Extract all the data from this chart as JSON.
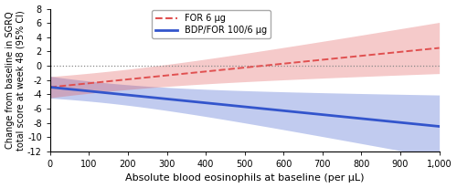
{
  "x_min": 0,
  "x_max": 1000,
  "y_min": -12,
  "y_max": 8,
  "x_ticks": [
    0,
    100,
    200,
    300,
    400,
    500,
    600,
    700,
    800,
    900,
    1000
  ],
  "x_tick_labels": [
    "0",
    "100",
    "200",
    "300",
    "400",
    "500",
    "600",
    "700",
    "800",
    "900",
    "1,000"
  ],
  "y_ticks": [
    -12,
    -10,
    -8,
    -6,
    -4,
    -2,
    0,
    2,
    4,
    6,
    8
  ],
  "xlabel": "Absolute blood eosinophils at baseline (per μL)",
  "ylabel": "Change from baseline in SGRQ\ntotal score at week 48 (95% CI)",
  "for_color": "#e05050",
  "bdp_color": "#3355cc",
  "for_label": "FOR 6 μg",
  "bdp_label": "BDP/FOR 100/6 μg",
  "zero_line_color": "#888888",
  "background_color": "#ffffff",
  "figsize": [
    5.0,
    2.06
  ],
  "dpi": 100
}
